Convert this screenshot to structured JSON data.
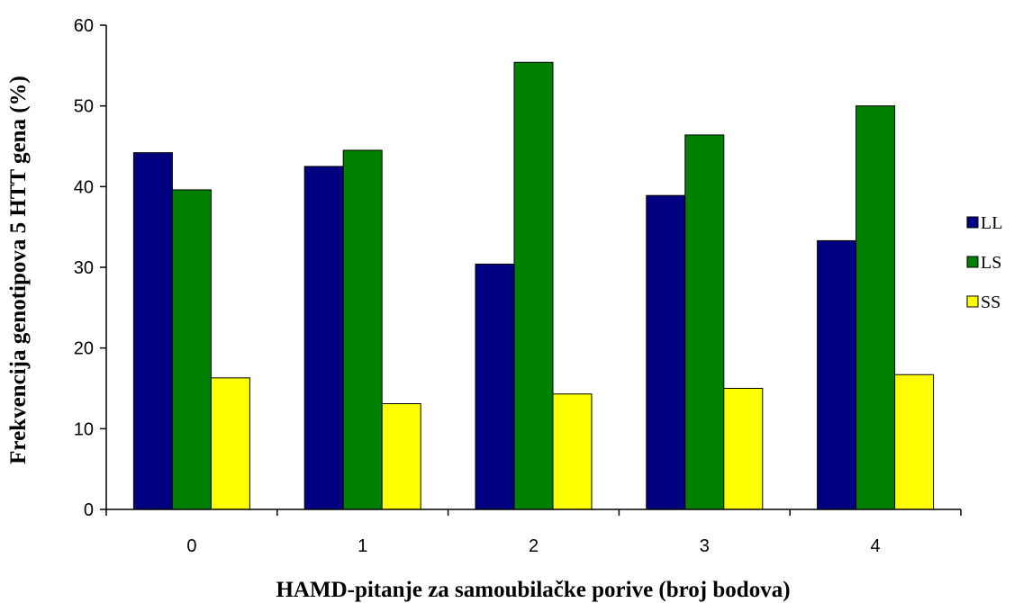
{
  "chart_data": {
    "type": "bar",
    "categories": [
      "0",
      "1",
      "2",
      "3",
      "4"
    ],
    "series": [
      {
        "name": "LL",
        "color": "#000080",
        "values": [
          44.2,
          42.5,
          30.4,
          38.9,
          33.3
        ]
      },
      {
        "name": "LS",
        "color": "#008000",
        "values": [
          39.6,
          44.5,
          55.4,
          46.4,
          50.0
        ]
      },
      {
        "name": "SS",
        "color": "#FFFF00",
        "values": [
          16.3,
          13.1,
          14.3,
          15.0,
          16.7
        ]
      }
    ],
    "xlabel": "HAMD-pitanje za samoubilačke porive (broj bodova)",
    "ylabel": "Frekvencija genotipova 5 HTT gena (%)",
    "ylim": [
      0,
      60
    ],
    "yticks": [
      "0",
      "10",
      "20",
      "30",
      "40",
      "50",
      "60"
    ],
    "grid": false,
    "legend_position": "right"
  }
}
